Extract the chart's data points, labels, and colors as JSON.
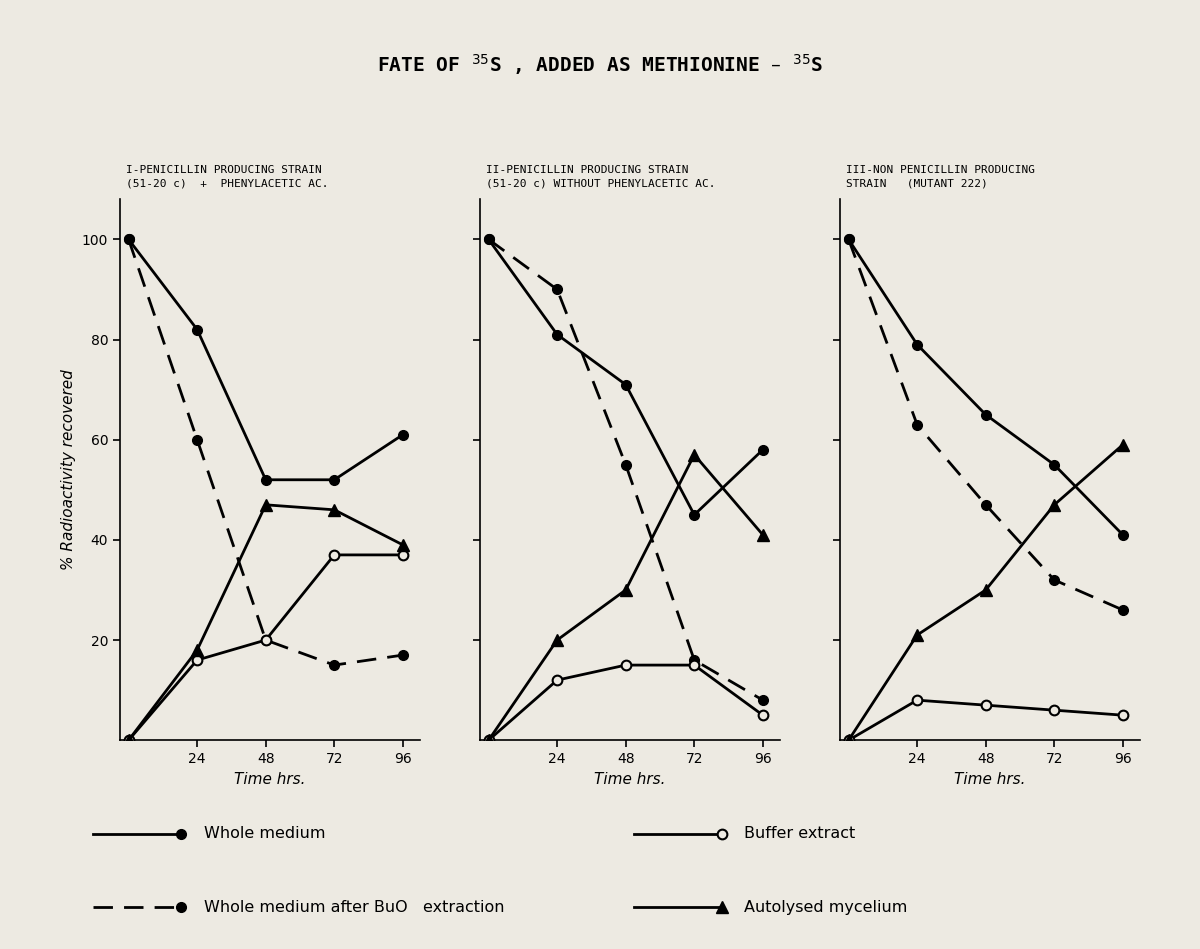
{
  "title": "FATE OF $^{35}$S , ADDED AS METHIONINE – $^{35}$S",
  "ylabel": "% Radioactivity recovered",
  "time": [
    0,
    24,
    48,
    72,
    96
  ],
  "panel1": {
    "title_line1": "I-PENICILLIN PRODUCING STRAIN",
    "title_line2": "(51-20 c)  +  PHENYLACETIC AC.",
    "xlabel": "Time hrs.",
    "whole_medium": [
      100,
      82,
      52,
      52,
      61
    ],
    "whole_medium_after_bu": [
      100,
      60,
      20,
      15,
      17
    ],
    "buffer_extract": [
      0,
      16,
      20,
      37,
      37
    ],
    "autolysed_mycelium": [
      0,
      18,
      47,
      46,
      39
    ]
  },
  "panel2": {
    "title_line1": "II-PENICILLIN PRODUCING STRAIN",
    "title_line2": "(51-20 c) WITHOUT PHENYLACETIC AC.",
    "xlabel": "Time hrs.",
    "whole_medium": [
      100,
      81,
      71,
      45,
      58
    ],
    "whole_medium_after_bu": [
      100,
      90,
      55,
      16,
      8
    ],
    "buffer_extract": [
      0,
      12,
      15,
      15,
      5
    ],
    "autolysed_mycelium": [
      0,
      20,
      30,
      57,
      41
    ]
  },
  "panel3": {
    "title_line1": "III-NON PENICILLIN PRODUCING",
    "title_line2": "STRAIN   (MUTANT 222)",
    "xlabel": "Time hrs.",
    "whole_medium": [
      100,
      79,
      65,
      55,
      41
    ],
    "whole_medium_after_bu": [
      100,
      63,
      47,
      32,
      26
    ],
    "buffer_extract": [
      0,
      8,
      7,
      6,
      5
    ],
    "autolysed_mycelium": [
      0,
      21,
      30,
      47,
      59
    ]
  },
  "background_color": "#edeae2",
  "line_color": "#000000"
}
